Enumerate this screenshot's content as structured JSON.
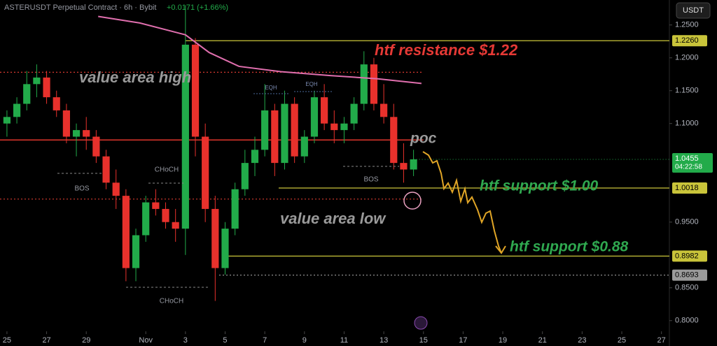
{
  "chart_data": {
    "type": "candlestick",
    "title": "ASTERUSDT Perpetual Contract · 6h · Bybit",
    "change": "+0.0171 (+1.66%)",
    "currency": "USDT",
    "up_color": "#22ab4a",
    "down_color": "#e8312c",
    "xlim": [
      -0.35,
      33.4
    ],
    "ylim": [
      0.788,
      1.288
    ],
    "xticks": [
      {
        "value": 0,
        "label": "25"
      },
      {
        "value": 2,
        "label": "27"
      },
      {
        "value": 4,
        "label": "29"
      },
      {
        "value": 7,
        "label": "Nov"
      },
      {
        "value": 9,
        "label": "3"
      },
      {
        "value": 11,
        "label": "5"
      },
      {
        "value": 13,
        "label": "7"
      },
      {
        "value": 15,
        "label": "9"
      },
      {
        "value": 17,
        "label": "11"
      },
      {
        "value": 19,
        "label": "13"
      },
      {
        "value": 21,
        "label": "15"
      },
      {
        "value": 23,
        "label": "17"
      },
      {
        "value": 25,
        "label": "19"
      },
      {
        "value": 27,
        "label": "21"
      },
      {
        "value": 29,
        "label": "23"
      },
      {
        "value": 31,
        "label": "25"
      },
      {
        "value": 33,
        "label": "27"
      }
    ],
    "yticks": [
      {
        "value": 0.8,
        "label": "0.8000"
      },
      {
        "value": 0.85,
        "label": "0.8500"
      },
      {
        "value": 0.95,
        "label": "0.9500"
      },
      {
        "value": 1.1,
        "label": "1.1000"
      },
      {
        "value": 1.15,
        "label": "1.1500"
      },
      {
        "value": 1.2,
        "label": "1.2000"
      },
      {
        "value": 1.25,
        "label": "1.2500"
      }
    ],
    "x": [
      0,
      0.5,
      1,
      1.5,
      2,
      2.5,
      3,
      3.5,
      4,
      4.5,
      5,
      5.5,
      6,
      6.5,
      7,
      7.5,
      8,
      8.5,
      9,
      9.5,
      10,
      10.5,
      11,
      11.5,
      12,
      12.5,
      13,
      13.5,
      14,
      14.5,
      15,
      15.5,
      16,
      16.5,
      17,
      17.5,
      18,
      18.5,
      19,
      19.5,
      20,
      20.5
    ],
    "open": [
      1.1,
      1.11,
      1.13,
      1.16,
      1.17,
      1.14,
      1.12,
      1.08,
      1.09,
      1.08,
      1.05,
      1.01,
      0.99,
      0.88,
      0.93,
      0.98,
      0.97,
      0.95,
      0.94,
      1.22,
      1.08,
      0.97,
      0.88,
      0.94,
      1.0,
      1.04,
      1.06,
      1.12,
      1.04,
      1.13,
      1.05,
      1.08,
      1.14,
      1.1,
      1.09,
      1.1,
      1.13,
      1.19,
      1.13,
      1.11,
      1.04,
      1.03
    ],
    "high": [
      1.12,
      1.14,
      1.18,
      1.19,
      1.18,
      1.15,
      1.13,
      1.1,
      1.11,
      1.09,
      1.06,
      1.03,
      1.0,
      0.94,
      0.99,
      1.0,
      0.98,
      0.97,
      1.28,
      1.23,
      1.1,
      0.99,
      0.95,
      1.01,
      1.06,
      1.08,
      1.16,
      1.13,
      1.15,
      1.14,
      1.09,
      1.15,
      1.16,
      1.12,
      1.11,
      1.14,
      1.21,
      1.2,
      1.16,
      1.13,
      1.07,
      1.06
    ],
    "low": [
      1.08,
      1.1,
      1.12,
      1.14,
      1.13,
      1.11,
      1.07,
      1.05,
      1.06,
      1.04,
      1.0,
      0.97,
      0.86,
      0.86,
      0.92,
      0.96,
      0.94,
      0.92,
      0.9,
      1.05,
      0.95,
      0.83,
      0.87,
      0.93,
      0.99,
      1.02,
      1.05,
      1.02,
      1.03,
      1.04,
      1.04,
      1.07,
      1.09,
      1.07,
      1.07,
      1.09,
      1.12,
      1.12,
      1.1,
      1.03,
      1.01,
      1.02
    ],
    "close": [
      1.11,
      1.13,
      1.16,
      1.17,
      1.14,
      1.12,
      1.08,
      1.09,
      1.08,
      1.05,
      1.01,
      0.99,
      0.88,
      0.93,
      0.98,
      0.97,
      0.95,
      0.94,
      1.22,
      1.08,
      0.97,
      0.88,
      0.94,
      1.0,
      1.04,
      1.06,
      1.12,
      1.04,
      1.13,
      1.05,
      1.08,
      1.14,
      1.1,
      1.09,
      1.1,
      1.13,
      1.19,
      1.13,
      1.11,
      1.04,
      1.03,
      1.0455
    ],
    "ma": {
      "color": "#e06fae",
      "x": [
        4.6,
        6.7,
        9,
        10.2,
        11.7,
        13.8,
        16.3,
        18.7,
        20.9
      ],
      "values": [
        1.263,
        1.253,
        1.235,
        1.208,
        1.187,
        1.179,
        1.173,
        1.168,
        1.161
      ]
    },
    "levels": [
      {
        "value": 1.226,
        "label": "1.2260",
        "color": "#c9c43a",
        "from": 9
      },
      {
        "value": 1.0018,
        "label": "1.0018",
        "color": "#c9c43a",
        "from": 13.7
      },
      {
        "value": 0.8982,
        "label": "0.8982",
        "color": "#c9c43a",
        "from": 10.9
      },
      {
        "value": 0.8693,
        "label": "0.8693",
        "color": "#9a9a9a",
        "from": 10.7
      }
    ],
    "last_price": {
      "value": 1.0455,
      "label": "1.0455",
      "countdown": "04:22:58",
      "color": "#22ab4a"
    },
    "profile_lines": [
      {
        "value": 1.178,
        "color": "#d83a30",
        "style": "dotted"
      },
      {
        "value": 1.075,
        "color": "#e0362c",
        "style": "solid"
      },
      {
        "value": 0.985,
        "color": "#d83a30",
        "style": "dotted"
      }
    ],
    "annotations": {
      "resistance": "htf resistance $1.22",
      "vah": "value area high",
      "poc": "poc",
      "support1": "htf support $1.00",
      "val": "value area low",
      "support2": "htf support $0.88",
      "bos1": "BOS",
      "bos2": "BOS",
      "choch1": "CHoCH",
      "choch2": "CHoCH",
      "eqh1": "EQH",
      "eqh2": "EQH"
    }
  }
}
